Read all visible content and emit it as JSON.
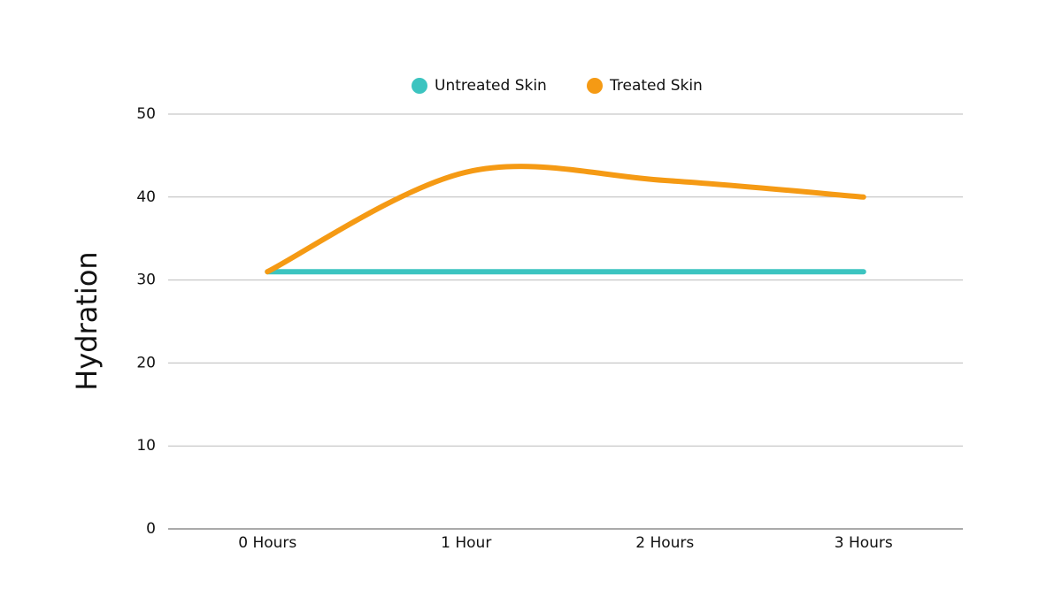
{
  "chart_data": {
    "type": "line",
    "y_label": "Hydration",
    "categories": [
      "0 Hours",
      "1 Hour",
      "2 Hours",
      "3 Hours"
    ],
    "series": [
      {
        "name": "Untreated Skin",
        "color": "#3cc4c0",
        "values": [
          31,
          31,
          31,
          31
        ]
      },
      {
        "name": "Treated Skin",
        "color": "#f59a14",
        "values": [
          31,
          43,
          42,
          40
        ]
      }
    ],
    "ylim": [
      0,
      50
    ],
    "yticks": [
      0,
      10,
      20,
      30,
      40,
      50
    ],
    "grid": true,
    "smooth": true,
    "legend": "top"
  }
}
